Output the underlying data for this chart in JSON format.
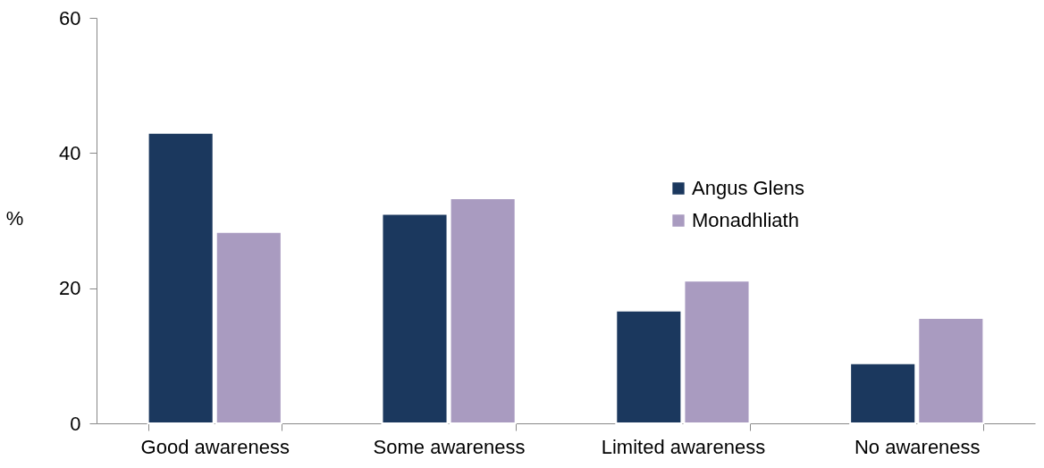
{
  "chart_data": {
    "type": "bar",
    "ylabel": "%",
    "categories": [
      "Good awareness",
      "Some awareness",
      "Limited awareness",
      "No awareness"
    ],
    "series": [
      {
        "name": "Angus Glens",
        "color": "#1b385e",
        "values": [
          43,
          31,
          16.7,
          8.9
        ]
      },
      {
        "name": "Monadhliath",
        "color": "#a99bc0",
        "values": [
          28.3,
          33.3,
          21.1,
          15.6
        ]
      }
    ],
    "ylim": [
      0,
      60
    ],
    "yticks": [
      0,
      20,
      40,
      60
    ],
    "grid": false,
    "legend": "right"
  }
}
